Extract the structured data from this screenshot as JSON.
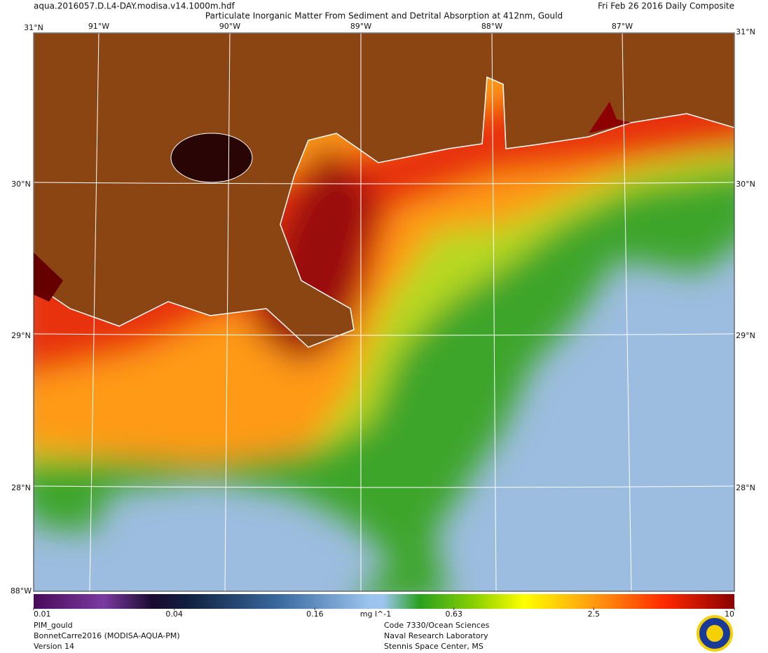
{
  "header": {
    "file": "aqua.2016057.D.L4-DAY.modisa.v14.1000m.hdf",
    "title": "Particulate Inorganic Matter From Sediment and Detrital Absorption at 412nm, Gould",
    "date": "Fri Feb 26 2016 Daily Composite"
  },
  "graticule": {
    "top_left": "31°N",
    "top_right": "31°N",
    "corner": "88°W",
    "longitudes": [
      "91°W",
      "90°W",
      "89°W",
      "88°W",
      "87°W"
    ],
    "latitudes": [
      "30°N",
      "29°N",
      "28°N"
    ]
  },
  "colorbar": {
    "range": [
      0.01,
      10
    ],
    "log": true,
    "ticks": [
      0.01,
      0.04,
      0.16,
      0.63,
      2.5,
      10
    ],
    "units": "mg l^-1"
  },
  "footer": {
    "left": [
      "PIM_gould",
      "BonnetCarre2016 (MODISA-AQUA-PM)",
      "Version 14"
    ],
    "center": [
      "Code 7330/Ocean Sciences",
      "Naval Research Laboratory",
      "Stennis Space Center, MS"
    ]
  }
}
